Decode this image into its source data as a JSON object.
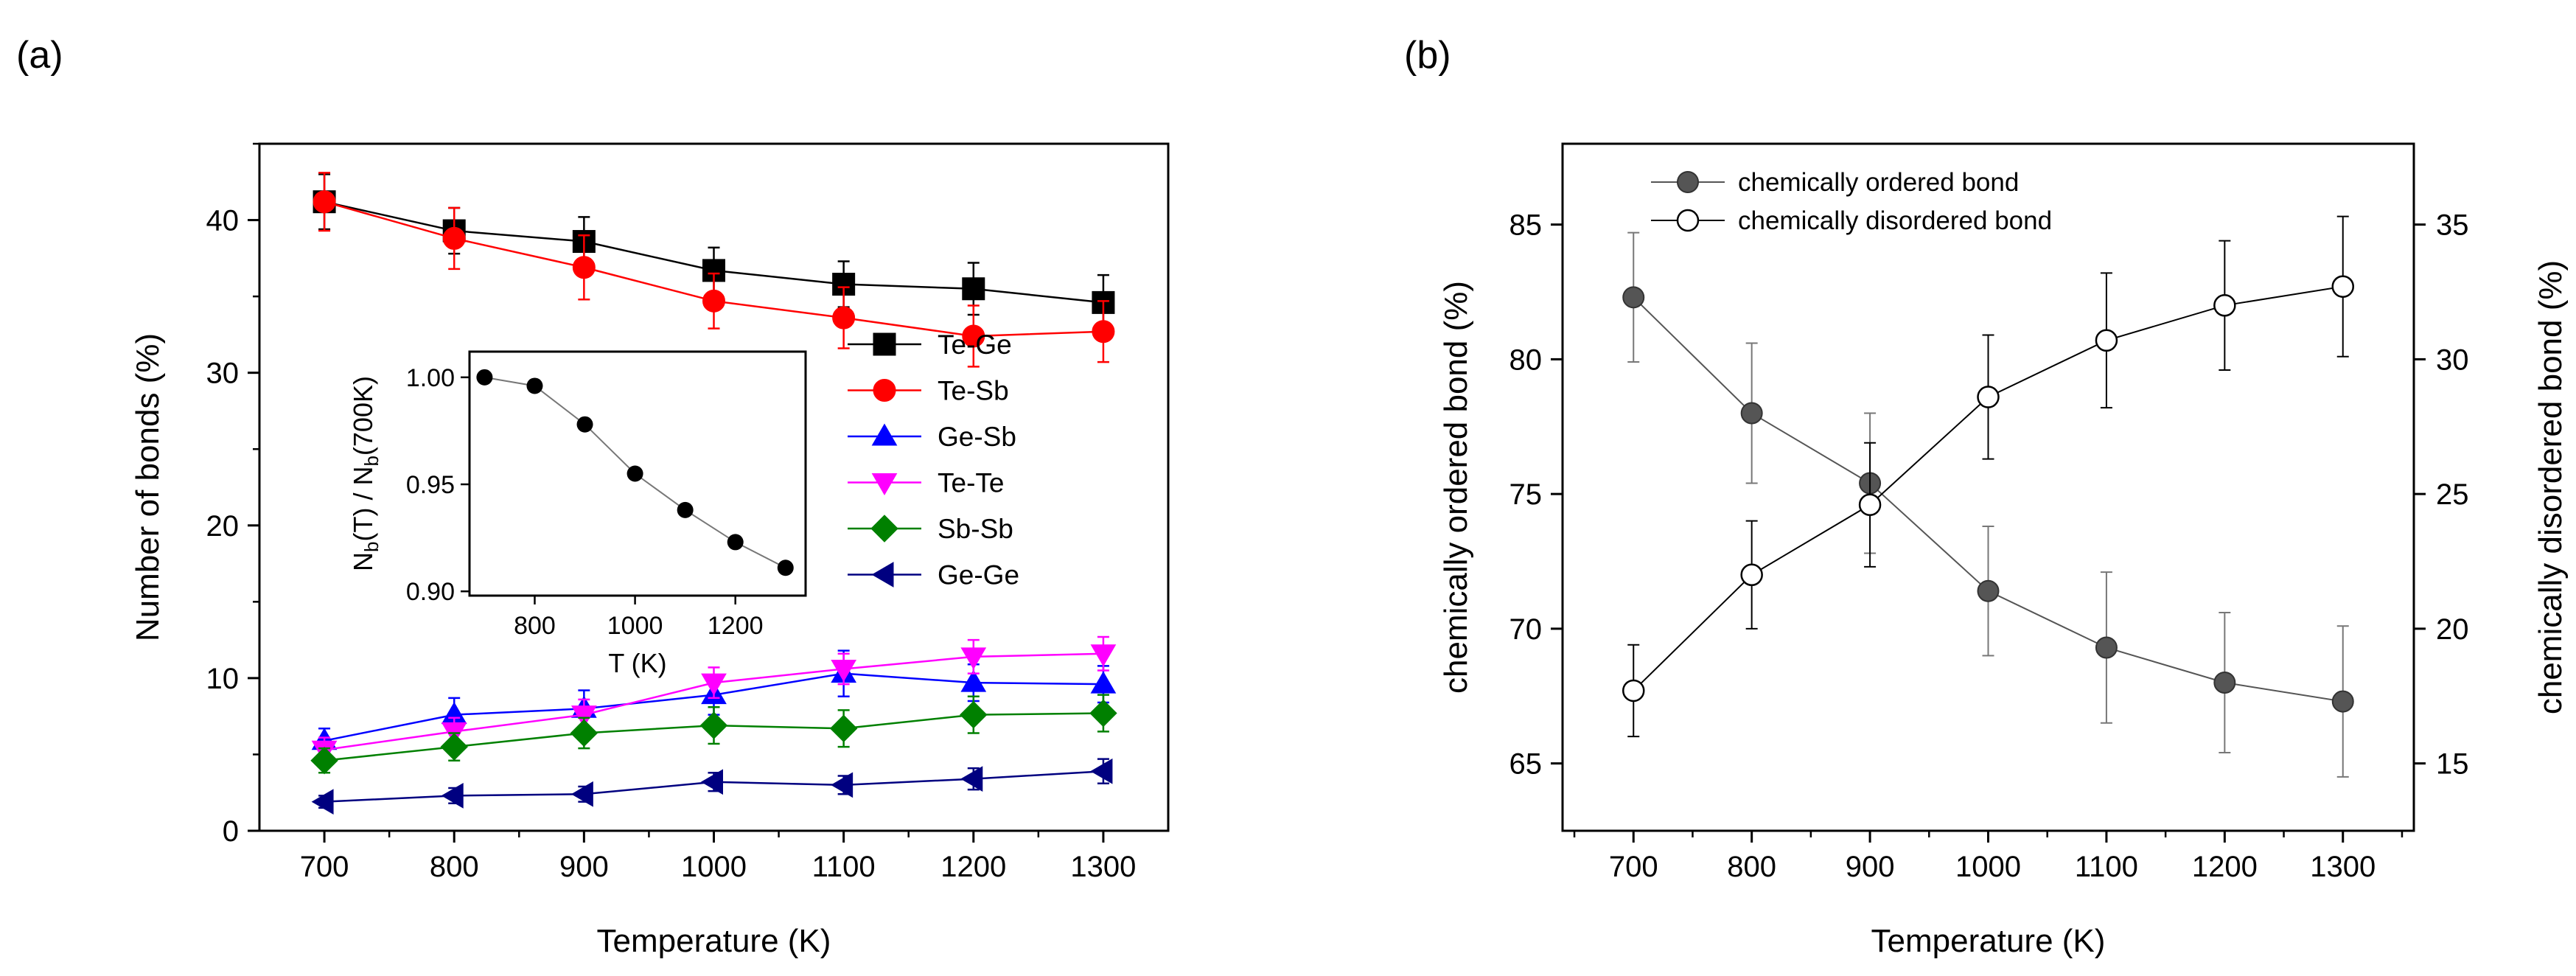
{
  "panel_labels": {
    "a": "(a)",
    "b": "(b)"
  },
  "chart_data": [
    {
      "id": "panel-a",
      "type": "line",
      "title": "",
      "xlabel": "Temperature (K)",
      "ylabel": "Number of bonds (%)",
      "xlim": [
        650,
        1350
      ],
      "ylim": [
        0,
        45
      ],
      "xticks": [
        700,
        800,
        900,
        1000,
        1100,
        1200,
        1300
      ],
      "yticks": [
        0,
        10,
        20,
        30,
        40
      ],
      "legend_position": "center-right",
      "x": [
        700,
        800,
        900,
        1000,
        1100,
        1200,
        1300
      ],
      "series": [
        {
          "name": "Te-Ge",
          "color": "#000000",
          "marker": "square",
          "values": [
            41.2,
            39.3,
            38.6,
            36.7,
            35.8,
            35.5,
            34.6
          ],
          "errors": [
            1.8,
            1.5,
            1.6,
            1.5,
            1.5,
            1.7,
            1.8
          ]
        },
        {
          "name": "Te-Sb",
          "color": "#ff0000",
          "marker": "circle",
          "values": [
            41.2,
            38.8,
            36.9,
            34.7,
            33.6,
            32.4,
            32.7
          ],
          "errors": [
            1.9,
            2.0,
            2.1,
            1.8,
            2.0,
            2.0,
            2.0
          ]
        },
        {
          "name": "Ge-Sb",
          "color": "#0000ff",
          "marker": "triangle-up",
          "values": [
            5.9,
            7.6,
            8.0,
            8.9,
            10.3,
            9.7,
            9.6
          ],
          "errors": [
            0.8,
            1.1,
            1.2,
            1.3,
            1.5,
            1.2,
            1.2
          ]
        },
        {
          "name": "Te-Te",
          "color": "#ff00ff",
          "marker": "triangle-down",
          "values": [
            5.3,
            6.5,
            7.6,
            9.7,
            10.6,
            11.4,
            11.6
          ],
          "errors": [
            0.8,
            0.9,
            1.0,
            1.0,
            1.0,
            1.1,
            1.1
          ]
        },
        {
          "name": "Sb-Sb",
          "color": "#008000",
          "marker": "diamond",
          "values": [
            4.6,
            5.5,
            6.4,
            6.9,
            6.7,
            7.6,
            7.7
          ],
          "errors": [
            0.8,
            0.9,
            1.0,
            1.2,
            1.2,
            1.2,
            1.2
          ]
        },
        {
          "name": "Ge-Ge",
          "color": "#000080",
          "marker": "triangle-left",
          "values": [
            1.9,
            2.3,
            2.4,
            3.2,
            3.0,
            3.4,
            3.9
          ],
          "errors": [
            0.4,
            0.5,
            0.5,
            0.6,
            0.6,
            0.7,
            0.8
          ]
        }
      ],
      "inset": {
        "type": "line",
        "xlabel": "T (K)",
        "ylabel_main": "N",
        "ylabel_sub1": "b",
        "ylabel_mid": "(T) / N",
        "ylabel_sub2": "b",
        "ylabel_end": "(700K)",
        "xlim": [
          670,
          1340
        ],
        "ylim": [
          0.898,
          1.012
        ],
        "xticks": [
          800,
          1000,
          1200
        ],
        "yticks": [
          0.9,
          0.95,
          1.0
        ],
        "ytick_labels": [
          "0.90",
          "0.95",
          "1.00"
        ],
        "x": [
          700,
          800,
          900,
          1000,
          1100,
          1200,
          1300
        ],
        "values": [
          1.0,
          0.996,
          0.978,
          0.955,
          0.938,
          0.923,
          0.911
        ]
      }
    },
    {
      "id": "panel-b",
      "type": "line",
      "title": "",
      "xlabel": "Temperature (K)",
      "ylabel_left": "chemically ordered bond (%)",
      "ylabel_right": "chemically disordered bond (%)",
      "xlim": [
        640,
        1360
      ],
      "ylim_left": [
        62.5,
        88
      ],
      "ylim_right": [
        12.5,
        38
      ],
      "xticks": [
        700,
        800,
        900,
        1000,
        1100,
        1200,
        1300
      ],
      "yticks_left": [
        65,
        70,
        75,
        80,
        85
      ],
      "yticks_right": [
        15,
        20,
        25,
        30,
        35
      ],
      "legend_position": "top-left",
      "x": [
        700,
        800,
        900,
        1000,
        1100,
        1200,
        1300
      ],
      "series": [
        {
          "name": "chemically ordered bond",
          "axis": "left",
          "color": "#555555",
          "marker": "filled-circle",
          "values": [
            82.3,
            78.0,
            75.4,
            71.4,
            69.3,
            68.0,
            67.3
          ],
          "errors": [
            2.4,
            2.6,
            2.6,
            2.4,
            2.8,
            2.6,
            2.8
          ]
        },
        {
          "name": "chemically disordered bond",
          "axis": "right",
          "color": "#000000",
          "marker": "open-circle",
          "values": [
            17.7,
            22.0,
            24.6,
            28.6,
            30.7,
            32.0,
            32.7
          ],
          "errors": [
            1.7,
            2.0,
            2.3,
            2.3,
            2.5,
            2.4,
            2.6
          ]
        }
      ]
    }
  ]
}
